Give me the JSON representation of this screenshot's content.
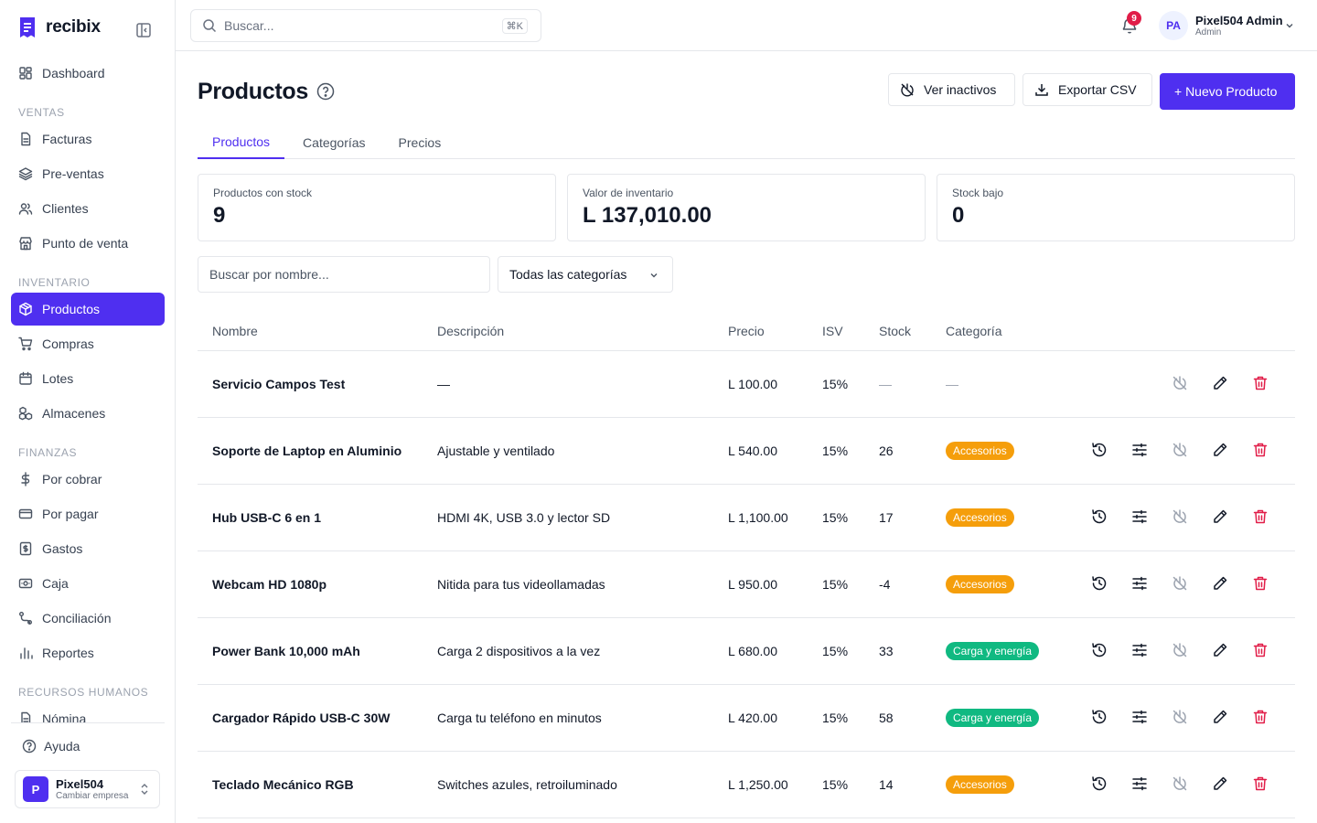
{
  "brand": {
    "name": "recibix"
  },
  "sidebar": {
    "items": [
      {
        "type": "item",
        "label": "Dashboard",
        "icon": "dashboard-icon"
      },
      {
        "type": "section",
        "label": "VENTAS"
      },
      {
        "type": "item",
        "label": "Facturas",
        "icon": "file-icon"
      },
      {
        "type": "item",
        "label": "Pre-ventas",
        "icon": "layers-icon"
      },
      {
        "type": "item",
        "label": "Clientes",
        "icon": "users-icon"
      },
      {
        "type": "item",
        "label": "Punto de venta",
        "icon": "store-icon"
      },
      {
        "type": "section",
        "label": "INVENTARIO"
      },
      {
        "type": "item",
        "label": "Productos",
        "icon": "package-icon",
        "active": true
      },
      {
        "type": "item",
        "label": "Compras",
        "icon": "cart-icon"
      },
      {
        "type": "item",
        "label": "Lotes",
        "icon": "calendar-icon"
      },
      {
        "type": "item",
        "label": "Almacenes",
        "icon": "boxes-icon"
      },
      {
        "type": "section",
        "label": "FINANZAS"
      },
      {
        "type": "item",
        "label": "Por cobrar",
        "icon": "dollar-icon"
      },
      {
        "type": "item",
        "label": "Por pagar",
        "icon": "card-icon"
      },
      {
        "type": "item",
        "label": "Gastos",
        "icon": "receipt-icon"
      },
      {
        "type": "item",
        "label": "Caja",
        "icon": "cash-icon"
      },
      {
        "type": "item",
        "label": "Conciliación",
        "icon": "route-icon"
      },
      {
        "type": "item",
        "label": "Reportes",
        "icon": "bar-chart-icon"
      },
      {
        "type": "section",
        "label": "RECURSOS HUMANOS"
      },
      {
        "type": "item",
        "label": "Nómina",
        "icon": "file-icon"
      }
    ],
    "help_label": "Ayuda",
    "company": {
      "initial": "P",
      "name": "Pixel504",
      "sub": "Cambiar empresa"
    }
  },
  "topbar": {
    "search_placeholder": "Buscar...",
    "shortcut": "⌘K",
    "notifications": "9",
    "user": {
      "initials": "PA",
      "name": "Pixel504 Admin",
      "role": "Admin"
    }
  },
  "page": {
    "title": "Productos",
    "buttons": {
      "inactive": "Ver inactivos",
      "export": "Exportar CSV",
      "new": "+ Nuevo Producto"
    },
    "tabs": [
      "Productos",
      "Categorías",
      "Precios"
    ],
    "stats": [
      {
        "label": "Productos con stock",
        "value": "9"
      },
      {
        "label": "Valor de inventario",
        "value": "L 137,010.00"
      },
      {
        "label": "Stock bajo",
        "value": "0"
      }
    ],
    "filter_placeholder": "Buscar por nombre...",
    "category_select": "Todas las categorías"
  },
  "table": {
    "headers": {
      "name": "Nombre",
      "desc": "Descripción",
      "price": "Precio",
      "isv": "ISV",
      "stock": "Stock",
      "cat": "Categoría"
    },
    "rows": [
      {
        "name": "Servicio Campos Test",
        "desc": "—",
        "price": "L 100.00",
        "isv": "15%",
        "stock": "—",
        "category": "—",
        "service": true
      },
      {
        "name": "Soporte de Laptop en Aluminio",
        "desc": "Ajustable y ventilado",
        "price": "L 540.00",
        "isv": "15%",
        "stock": "26",
        "category": "Accesorios",
        "category_color": "#f59e0b"
      },
      {
        "name": "Hub USB-C 6 en 1",
        "desc": "HDMI 4K, USB 3.0 y lector SD",
        "price": "L 1,100.00",
        "isv": "15%",
        "stock": "17",
        "category": "Accesorios",
        "category_color": "#f59e0b"
      },
      {
        "name": "Webcam HD 1080p",
        "desc": "Nitida para tus videollamadas",
        "price": "L 950.00",
        "isv": "15%",
        "stock": "-4",
        "category": "Accesorios",
        "category_color": "#f59e0b"
      },
      {
        "name": "Power Bank 10,000 mAh",
        "desc": "Carga 2 dispositivos a la vez",
        "price": "L 680.00",
        "isv": "15%",
        "stock": "33",
        "category": "Carga y energía",
        "category_color": "#10b981"
      },
      {
        "name": "Cargador Rápido USB-C 30W",
        "desc": "Carga tu teléfono en minutos",
        "price": "L 420.00",
        "isv": "15%",
        "stock": "58",
        "category": "Carga y energía",
        "category_color": "#10b981"
      },
      {
        "name": "Teclado Mecánico RGB",
        "desc": "Switches azules, retroiluminado",
        "price": "L 1,250.00",
        "isv": "15%",
        "stock": "14",
        "category": "Accesorios",
        "category_color": "#f59e0b"
      }
    ]
  },
  "colors": {
    "accent": "#4f2ff0",
    "danger": "#e11d48",
    "muted": "#9ca3af"
  }
}
